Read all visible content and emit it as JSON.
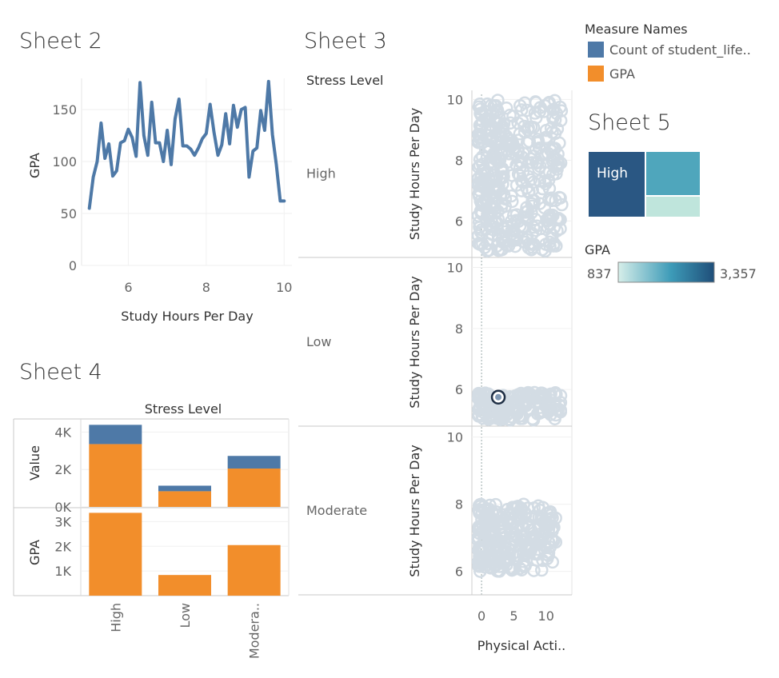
{
  "legend": {
    "title": "Measure Names",
    "items": [
      {
        "label": "Count of student_life..",
        "color": "#4e79a7"
      },
      {
        "label": "GPA",
        "color": "#f28e2b"
      }
    ]
  },
  "gpa_legend": {
    "title": "GPA",
    "min_label": "837",
    "max_label": "3,357"
  },
  "sheet2": {
    "title": "Sheet 2",
    "chart_data": {
      "type": "line",
      "xlabel": "Study Hours Per Day",
      "ylabel": "GPA",
      "xlim": [
        4.8,
        10.2
      ],
      "ylim": [
        0,
        180
      ],
      "xticks": [
        "6",
        "8",
        "10"
      ],
      "yticks": [
        "0",
        "50",
        "100",
        "150"
      ],
      "x": [
        5.0,
        5.1,
        5.2,
        5.3,
        5.4,
        5.5,
        5.6,
        5.7,
        5.8,
        5.9,
        6.0,
        6.1,
        6.2,
        6.3,
        6.4,
        6.5,
        6.6,
        6.7,
        6.8,
        6.9,
        7.0,
        7.1,
        7.2,
        7.3,
        7.4,
        7.5,
        7.6,
        7.7,
        7.8,
        7.9,
        8.0,
        8.1,
        8.2,
        8.3,
        8.4,
        8.5,
        8.6,
        8.7,
        8.8,
        8.9,
        9.0,
        9.1,
        9.2,
        9.3,
        9.4,
        9.5,
        9.6,
        9.7,
        9.8,
        9.9,
        10.0
      ],
      "series": [
        {
          "values": [
            55,
            85,
            100,
            137,
            103,
            117,
            86,
            91,
            118,
            120,
            131,
            123,
            105,
            176,
            125,
            106,
            157,
            118,
            118,
            100,
            130,
            97,
            141,
            160,
            115,
            115,
            112,
            106,
            113,
            122,
            127,
            155,
            128,
            106,
            116,
            146,
            117,
            154,
            133,
            150,
            152,
            85,
            110,
            113,
            149,
            130,
            177,
            126,
            97,
            62,
            62
          ]
        }
      ],
      "color": "#4e79a7"
    }
  },
  "sheet3": {
    "title": "Sheet 3",
    "row_header": "Stress Level",
    "chart_data": {
      "type": "scatter",
      "xlabel": "Physical Acti..",
      "ylabel": "Study Hours Per Day",
      "xlim": [
        -1.5,
        14
      ],
      "xticks": [
        "0",
        "5",
        "10"
      ],
      "panels": [
        {
          "label": "High",
          "ylim": [
            4.8,
            10.3
          ],
          "yticks": [
            "6",
            "8",
            "10"
          ],
          "x_range": [
            -0.5,
            12.5
          ],
          "y_range": [
            5,
            10
          ],
          "n": 420
        },
        {
          "label": "Low",
          "ylim": [
            4.8,
            10.3
          ],
          "yticks": [
            "6",
            "8",
            "10"
          ],
          "x_range": [
            -0.5,
            12.5
          ],
          "y_range": [
            5,
            5.9
          ],
          "n": 180,
          "highlight": {
            "x": 2.6,
            "y": 5.75
          }
        },
        {
          "label": "Moderate",
          "ylim": [
            5.3,
            10.3
          ],
          "yticks": [
            "6",
            "8",
            "10"
          ],
          "x_range": [
            -0.5,
            11.5
          ],
          "y_range": [
            6,
            8
          ],
          "n": 280
        }
      ],
      "color": "#d3dce4"
    }
  },
  "sheet4": {
    "title": "Sheet 4",
    "column_header": "Stress Level",
    "chart_data": {
      "type": "bar",
      "categories": [
        "High",
        "Low",
        "Modera.."
      ],
      "panels": [
        {
          "ylabel": "Value",
          "ylim": [
            0,
            4700
          ],
          "yticks": [
            "0K",
            "2K",
            "4K"
          ],
          "stacked": true,
          "series": [
            {
              "name": "GPA",
              "values": [
                3357,
                837,
                2050
              ],
              "color": "#f28e2b"
            },
            {
              "name": "Count of student_life..",
              "values": [
                1029,
                297,
                674
              ],
              "color": "#4e79a7"
            }
          ]
        },
        {
          "ylabel": "GPA",
          "ylim": [
            0,
            3500
          ],
          "yticks": [
            "1K",
            "2K",
            "3K"
          ],
          "series": [
            {
              "name": "GPA",
              "values": [
                3357,
                837,
                2050
              ],
              "color": "#f28e2b"
            }
          ]
        }
      ]
    }
  },
  "sheet5": {
    "title": "Sheet 5",
    "chart_data": {
      "type": "heatmap",
      "cells": [
        {
          "label": "High",
          "value": 3357
        },
        {
          "label": "",
          "value": 2050
        },
        {
          "label": "",
          "value": 837
        }
      ]
    }
  }
}
